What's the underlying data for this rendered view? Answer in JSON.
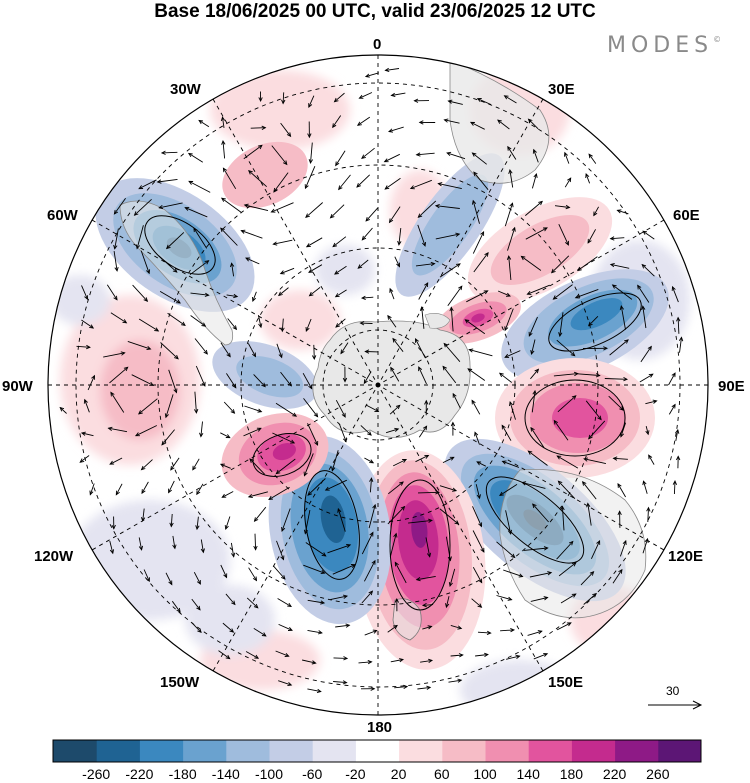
{
  "title": "Base 18/06/2025 00 UTC, valid 23/06/2025 12 UTC",
  "brand": "MODES",
  "brand_mark": "©",
  "longitude_labels": {
    "lon_0": "0",
    "lon_30e": "30E",
    "lon_60e": "60E",
    "lon_90e": "90E",
    "lon_120e": "120E",
    "lon_150e": "150E",
    "lon_180": "180",
    "lon_150w": "150W",
    "lon_120w": "120W",
    "lon_90w": "90W",
    "lon_60w": "60W",
    "lon_30w": "30W"
  },
  "colorbar": {
    "ticks": [
      "-260",
      "-220",
      "-180",
      "-140",
      "-100",
      "-60",
      "-20",
      "20",
      "60",
      "100",
      "140",
      "180",
      "220",
      "260"
    ],
    "colors": [
      "#1d4a6b",
      "#1f6393",
      "#3b88bf",
      "#6aa2cf",
      "#9fbcdd",
      "#c3cde6",
      "#e4e4f1",
      "#ffffff",
      "#fbdde0",
      "#f6bcc6",
      "#f08fb0",
      "#e2549e",
      "#c42b8e",
      "#8e1a86",
      "#5c1675"
    ]
  },
  "reference_vector": {
    "value": "30"
  },
  "colors": {
    "negative_strong": "#1f6393",
    "positive_strong": "#c42b8e",
    "land": "#e8e8e8",
    "graticule": "#000000"
  }
}
